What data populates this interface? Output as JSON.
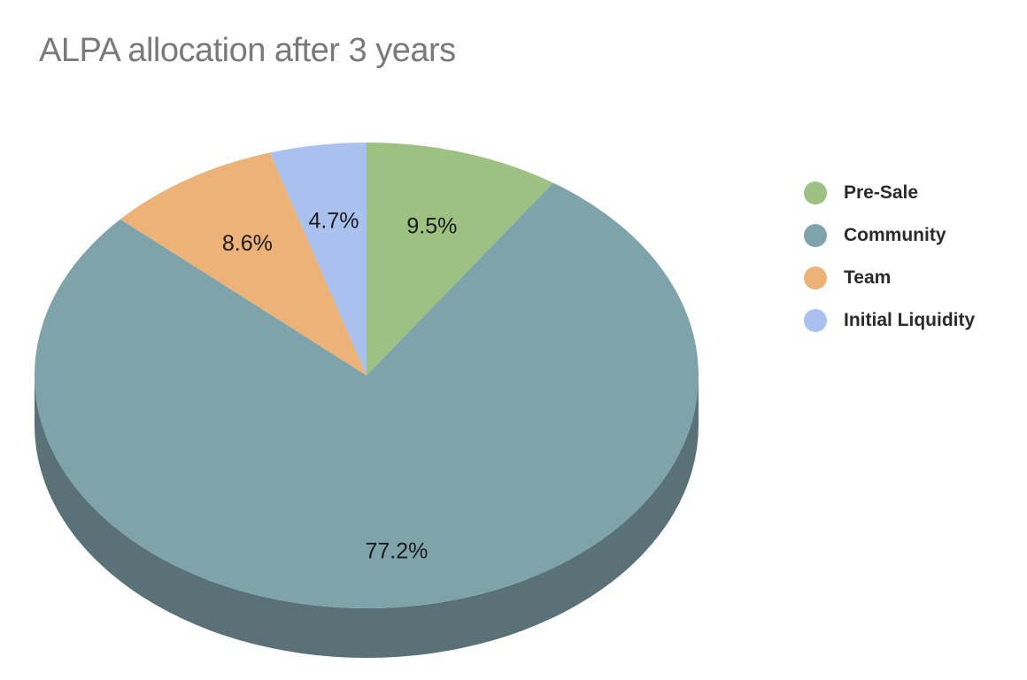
{
  "chart_data": {
    "type": "pie",
    "title": "ALPA allocation after 3 years",
    "legend_position": "right",
    "three_d": true,
    "slices": [
      {
        "label": "Pre-Sale",
        "value": 9.5,
        "display": "9.5%",
        "color": "#9dc183"
      },
      {
        "label": "Community",
        "value": 77.2,
        "display": "77.2%",
        "color": "#7fa3aa"
      },
      {
        "label": "Team",
        "value": 8.6,
        "display": "8.6%",
        "color": "#edb277"
      },
      {
        "label": "Initial Liquidity",
        "value": 4.7,
        "display": "4.7%",
        "color": "#aac0ef"
      }
    ],
    "side_color": "#5a7178"
  }
}
